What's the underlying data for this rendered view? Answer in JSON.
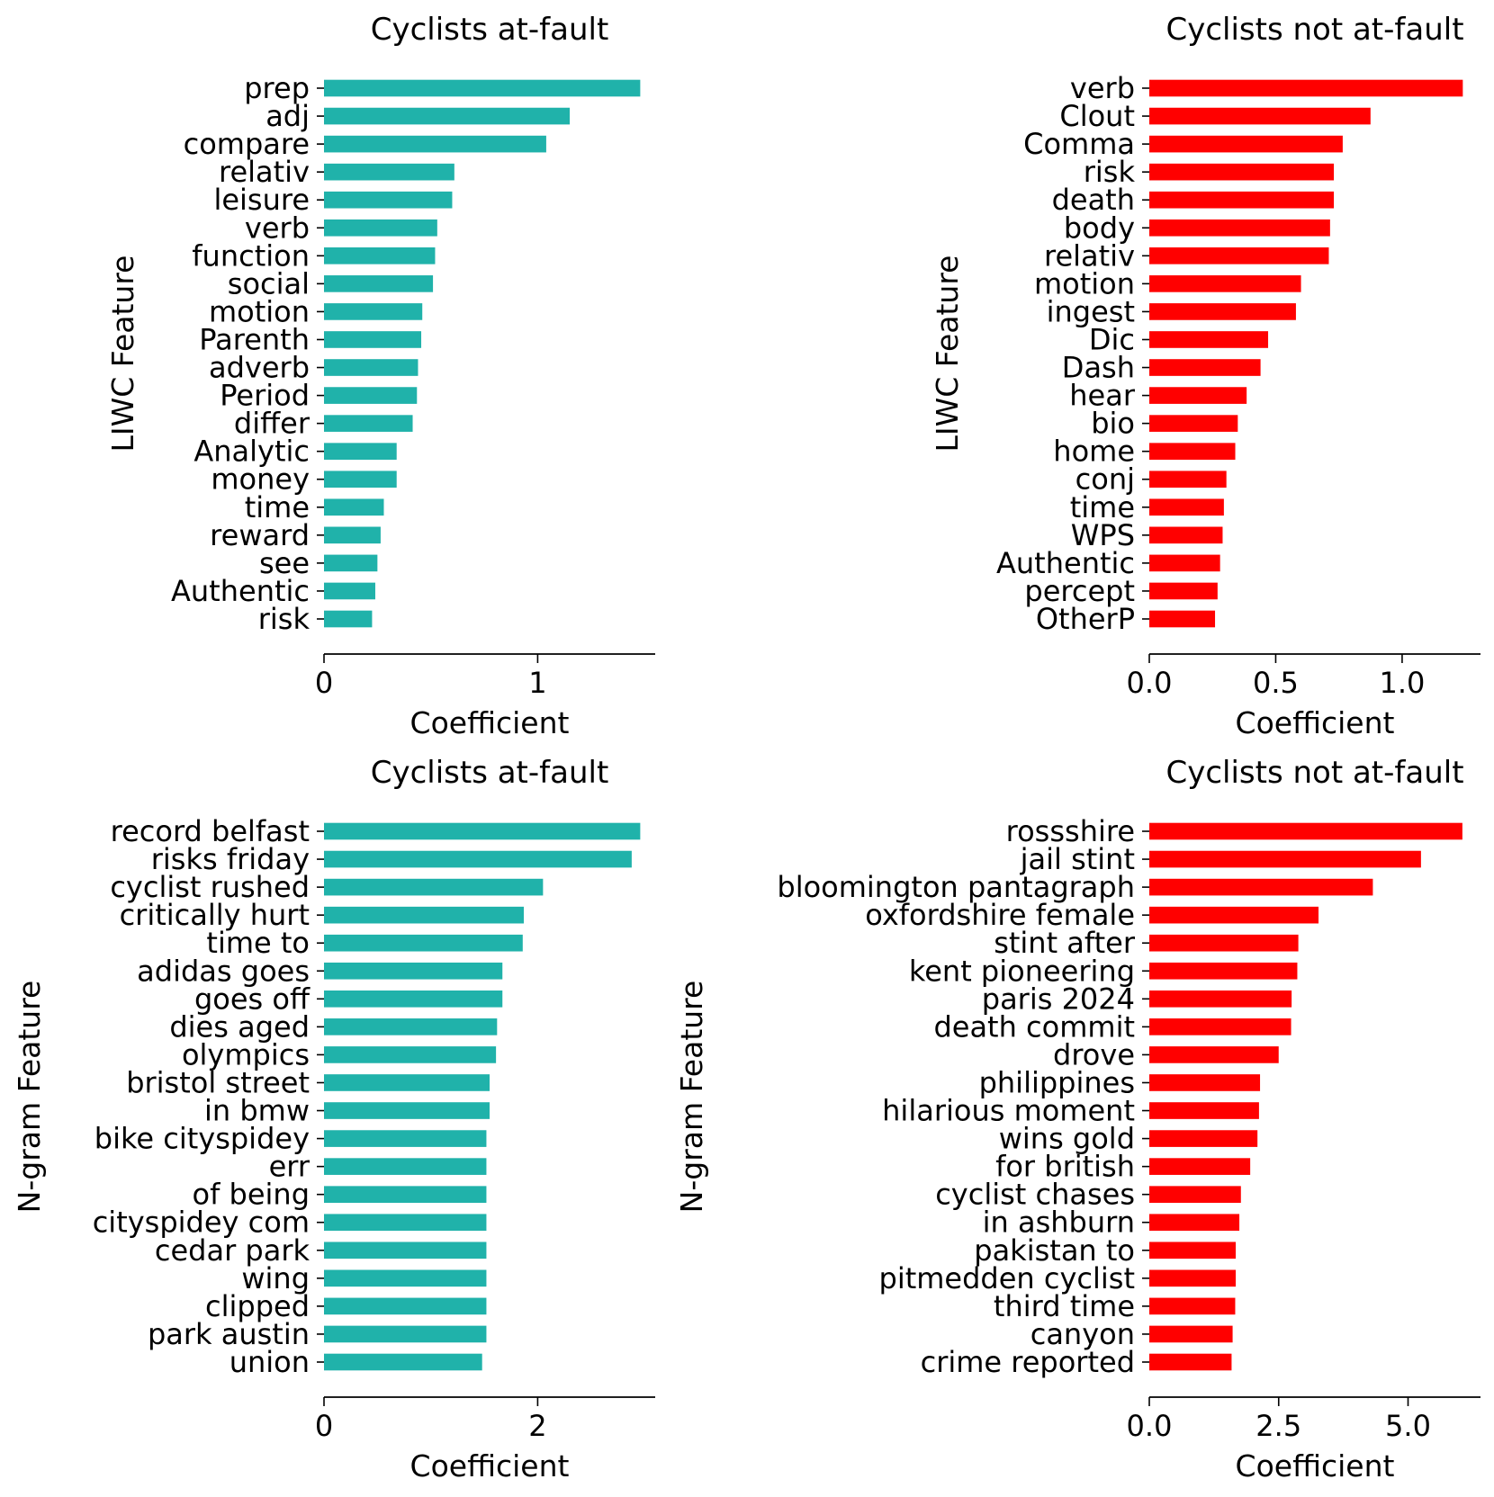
{
  "colors": {
    "at_fault": "#20b2aa",
    "not_at_fault": "#ff0000"
  },
  "chart_data": [
    {
      "id": "liwc-at-fault",
      "type": "bar",
      "orientation": "horizontal",
      "title": "Cyclists at-fault",
      "xlabel": "Coefficient",
      "ylabel": "LIWC Feature",
      "xlim": [
        0,
        1.55
      ],
      "xticks": [
        0,
        1
      ],
      "xtick_labels": [
        "0",
        "1"
      ],
      "grid": false,
      "color": "#20b2aa",
      "categories": [
        "prep",
        "adj",
        "compare",
        "relativ",
        "leisure",
        "verb",
        "function",
        "social",
        "motion",
        "Parenth",
        "adverb",
        "Period",
        "differ",
        "Analytic",
        "money",
        "time",
        "reward",
        "see",
        "Authentic",
        "risk"
      ],
      "values": [
        1.48,
        1.15,
        1.04,
        0.61,
        0.6,
        0.53,
        0.52,
        0.51,
        0.46,
        0.455,
        0.44,
        0.435,
        0.415,
        0.34,
        0.34,
        0.28,
        0.265,
        0.25,
        0.24,
        0.225
      ]
    },
    {
      "id": "liwc-not-at-fault",
      "type": "bar",
      "orientation": "horizontal",
      "title": "Cyclists not at-fault",
      "xlabel": "Coefficient",
      "ylabel": "LIWC Feature",
      "xlim": [
        0,
        1.31
      ],
      "xticks": [
        0,
        0.5,
        1.0
      ],
      "xtick_labels": [
        "0.0",
        "0.5",
        "1.0"
      ],
      "grid": false,
      "color": "#ff0000",
      "categories": [
        "verb",
        "Clout",
        "Comma",
        "risk",
        "death",
        "body",
        "relativ",
        "motion",
        "ingest",
        "Dic",
        "Dash",
        "hear",
        "bio",
        "home",
        "conj",
        "time",
        "WPS",
        "Authentic",
        "percept",
        "OtherP"
      ],
      "values": [
        1.24,
        0.875,
        0.765,
        0.73,
        0.73,
        0.715,
        0.71,
        0.6,
        0.58,
        0.47,
        0.44,
        0.385,
        0.35,
        0.34,
        0.305,
        0.295,
        0.29,
        0.28,
        0.27,
        0.26
      ]
    },
    {
      "id": "ngram-at-fault",
      "type": "bar",
      "orientation": "horizontal",
      "title": "Cyclists at-fault",
      "xlabel": "Coefficient",
      "ylabel": "N-gram Feature",
      "xlim": [
        0,
        3.1
      ],
      "xticks": [
        0,
        2
      ],
      "xtick_labels": [
        "0",
        "2"
      ],
      "grid": false,
      "color": "#20b2aa",
      "categories": [
        "record belfast",
        "risks friday",
        "cyclist rushed",
        "critically hurt",
        "time to",
        "adidas goes",
        "goes off",
        "dies aged",
        "olympics",
        "bristol street",
        "in bmw",
        "bike cityspidey",
        "err",
        "of being",
        "cityspidey com",
        "cedar park",
        "wing",
        "clipped",
        "park austin",
        "union"
      ],
      "values": [
        2.96,
        2.88,
        2.05,
        1.87,
        1.86,
        1.67,
        1.67,
        1.62,
        1.61,
        1.55,
        1.55,
        1.52,
        1.52,
        1.52,
        1.52,
        1.52,
        1.52,
        1.52,
        1.52,
        1.48
      ]
    },
    {
      "id": "ngram-not-at-fault",
      "type": "bar",
      "orientation": "horizontal",
      "title": "Cyclists not at-fault",
      "xlabel": "Coefficient",
      "ylabel": "N-gram Feature",
      "xlim": [
        0,
        6.4
      ],
      "xticks": [
        0,
        2.5,
        5.0
      ],
      "xtick_labels": [
        "0.0",
        "2.5",
        "5.0"
      ],
      "grid": false,
      "color": "#ff0000",
      "categories": [
        "rossshire",
        "jail stint",
        "bloomington pantagraph",
        "oxfordshire female",
        "stint after",
        "kent pioneering",
        "paris 2024",
        "death commit",
        "drove",
        "philippines",
        "hilarious moment",
        "wins gold",
        "for british",
        "cyclist chases",
        "in ashburn",
        "pakistan to",
        "pitmedden cyclist",
        "third time",
        "canyon",
        "crime reported"
      ],
      "values": [
        6.05,
        5.25,
        4.32,
        3.27,
        2.88,
        2.86,
        2.75,
        2.74,
        2.5,
        2.14,
        2.12,
        2.09,
        1.95,
        1.77,
        1.74,
        1.67,
        1.67,
        1.66,
        1.61,
        1.59
      ]
    }
  ]
}
